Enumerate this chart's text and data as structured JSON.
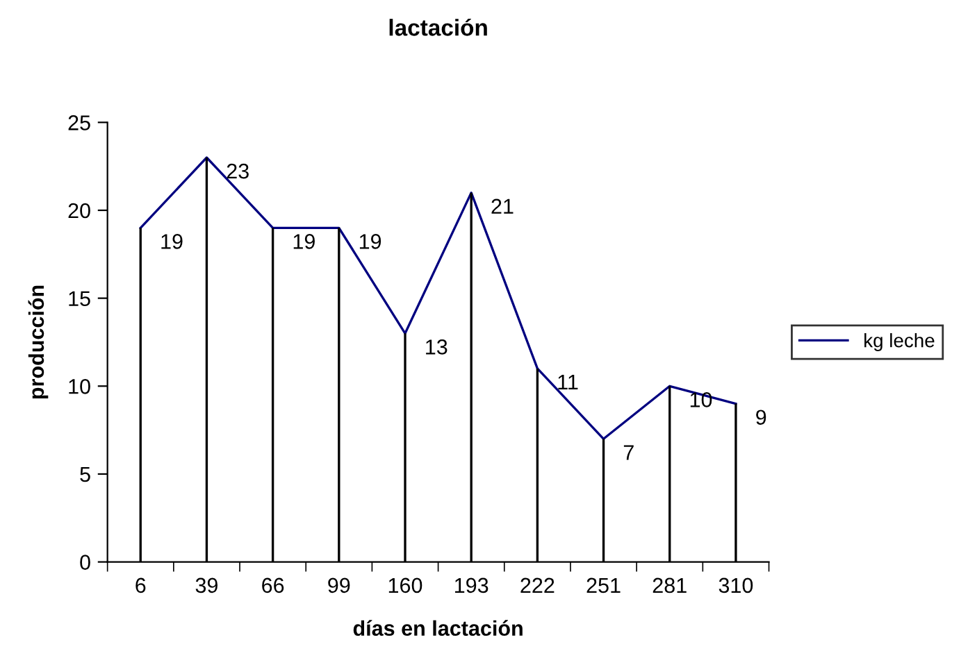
{
  "chart_data": {
    "type": "line",
    "title": "lactación",
    "xlabel": "días en lactación",
    "ylabel": "producción",
    "categories": [
      "6",
      "39",
      "66",
      "99",
      "160",
      "193",
      "222",
      "251",
      "281",
      "310"
    ],
    "series": [
      {
        "name": "kg leche",
        "color": "#000080",
        "values": [
          19,
          23,
          19,
          19,
          13,
          21,
          11,
          7,
          10,
          9
        ]
      }
    ],
    "ylim": [
      0,
      25
    ],
    "grid": "x",
    "yticks": [
      0,
      5,
      10,
      15,
      20,
      25
    ],
    "legend": "right",
    "marker": "none",
    "line_style": "solid",
    "data_labels": true
  }
}
